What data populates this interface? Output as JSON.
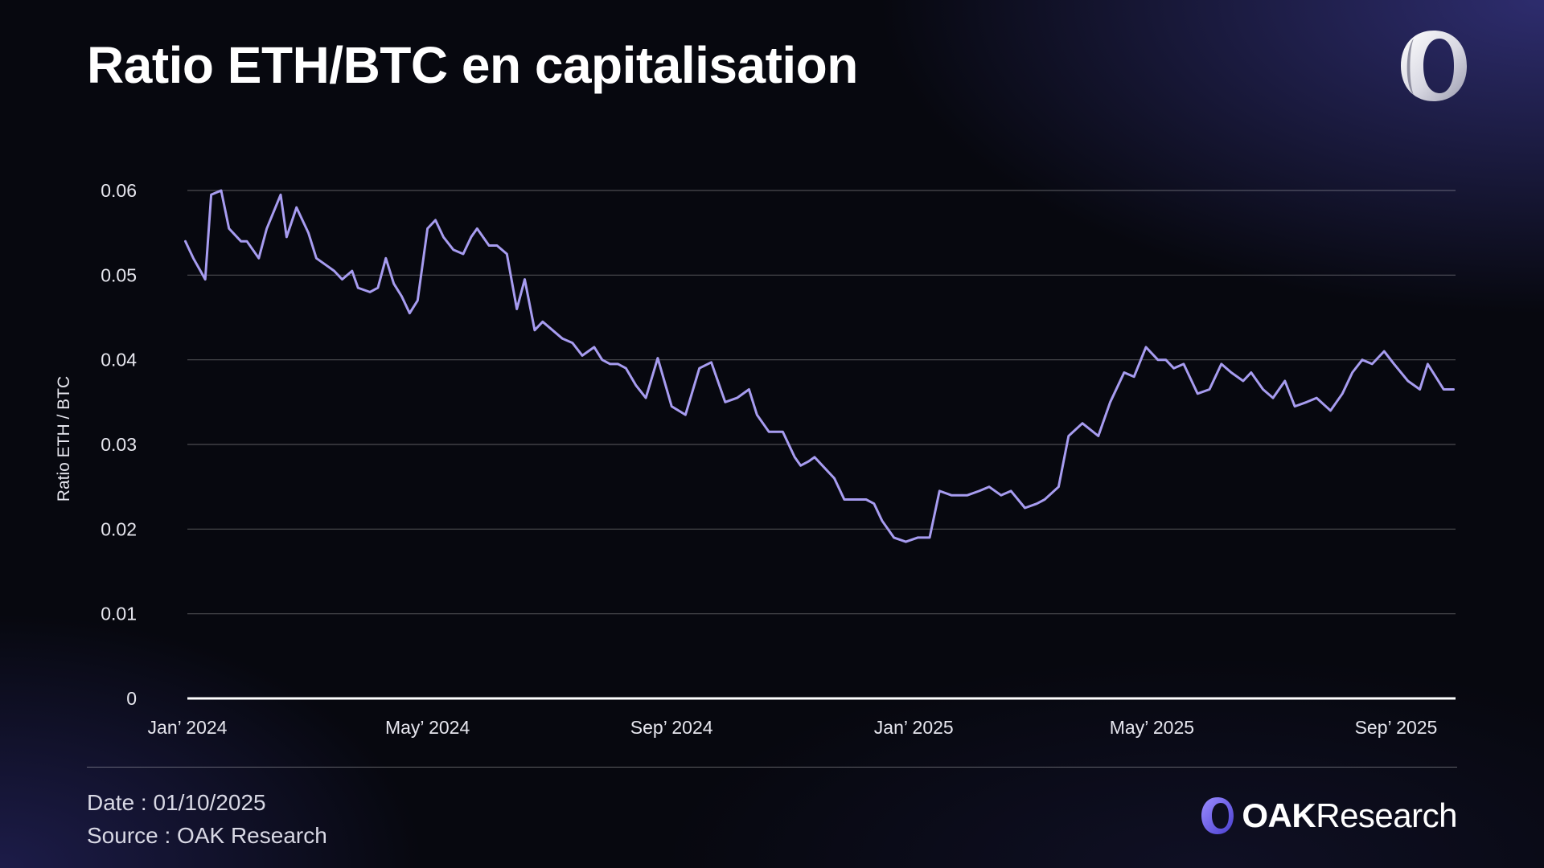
{
  "header": {
    "title": "Ratio ETH/BTC en capitalisation",
    "logo_icon": "oak-ring-logo-icon"
  },
  "chart_data": {
    "type": "line",
    "title": "Ratio ETH/BTC en capitalisation",
    "xlabel": "",
    "ylabel": "Ratio ETH / BTC",
    "ylim": [
      0,
      0.06
    ],
    "yticks": [
      0,
      0.01,
      0.02,
      0.03,
      0.04,
      0.05,
      0.06
    ],
    "ytick_labels": [
      "0",
      "0.01",
      "0.02",
      "0.03",
      "0.04",
      "0.05",
      "0.06"
    ],
    "xlim": [
      "2024-01-01",
      "2025-10-01"
    ],
    "xticks": [
      "2024-01-01",
      "2024-05-01",
      "2024-09-01",
      "2025-01-01",
      "2025-05-01",
      "2025-09-01"
    ],
    "xtick_labels": [
      "Jan’ 2024",
      "May’ 2024",
      "Sep’ 2024",
      "Jan’ 2025",
      "May’ 2025",
      "Sep’ 2025"
    ],
    "grid": "horizontal",
    "line_color": "#a79cf0",
    "series": [
      {
        "x": [
          "2023-12-31",
          "2024-01-04",
          "2024-01-10",
          "2024-01-13",
          "2024-01-18",
          "2024-01-22",
          "2024-01-28",
          "2024-01-31",
          "2024-02-06",
          "2024-02-10",
          "2024-02-17",
          "2024-02-20",
          "2024-02-25",
          "2024-03-02",
          "2024-03-06",
          "2024-03-12",
          "2024-03-15",
          "2024-03-19",
          "2024-03-24",
          "2024-03-27",
          "2024-04-02",
          "2024-04-06",
          "2024-04-10",
          "2024-04-14",
          "2024-04-18",
          "2024-04-22",
          "2024-04-26",
          "2024-05-01",
          "2024-05-05",
          "2024-05-09",
          "2024-05-14",
          "2024-05-19",
          "2024-05-23",
          "2024-05-26",
          "2024-06-01",
          "2024-06-05",
          "2024-06-10",
          "2024-06-15",
          "2024-06-19",
          "2024-06-24",
          "2024-06-28",
          "2024-07-03",
          "2024-07-08",
          "2024-07-13",
          "2024-07-18",
          "2024-07-24",
          "2024-07-28",
          "2024-08-01",
          "2024-08-05",
          "2024-08-09",
          "2024-08-14",
          "2024-08-19",
          "2024-08-25",
          "2024-09-01",
          "2024-09-08",
          "2024-09-15",
          "2024-09-21",
          "2024-09-28",
          "2024-10-04",
          "2024-10-10",
          "2024-10-14",
          "2024-10-20",
          "2024-10-27",
          "2024-11-02",
          "2024-11-05",
          "2024-11-09",
          "2024-11-12",
          "2024-11-16",
          "2024-11-22",
          "2024-11-27",
          "2024-12-02",
          "2024-12-08",
          "2024-12-12",
          "2024-12-16",
          "2024-12-22",
          "2024-12-28",
          "2025-01-03",
          "2025-01-09",
          "2025-01-14",
          "2025-01-20",
          "2025-01-28",
          "2025-02-03",
          "2025-02-08",
          "2025-02-14",
          "2025-02-19",
          "2025-02-26",
          "2025-03-04",
          "2025-03-08",
          "2025-03-15",
          "2025-03-20",
          "2025-03-27",
          "2025-04-04",
          "2025-04-10",
          "2025-04-17",
          "2025-04-22",
          "2025-04-28",
          "2025-05-04",
          "2025-05-08",
          "2025-05-12",
          "2025-05-17",
          "2025-05-24",
          "2025-05-30",
          "2025-06-05",
          "2025-06-10",
          "2025-06-16",
          "2025-06-20",
          "2025-06-26",
          "2025-07-01",
          "2025-07-07",
          "2025-07-12",
          "2025-07-18",
          "2025-07-23",
          "2025-07-30",
          "2025-08-05",
          "2025-08-10",
          "2025-08-15",
          "2025-08-20",
          "2025-08-26",
          "2025-08-31",
          "2025-09-07",
          "2025-09-13",
          "2025-09-17",
          "2025-09-21",
          "2025-09-25",
          "2025-09-30"
        ],
        "y": [
          0.054,
          0.052,
          0.0495,
          0.0595,
          0.06,
          0.0555,
          0.054,
          0.054,
          0.052,
          0.0555,
          0.0595,
          0.0545,
          0.058,
          0.055,
          0.052,
          0.051,
          0.0505,
          0.0495,
          0.0505,
          0.0485,
          0.048,
          0.0485,
          0.052,
          0.049,
          0.0475,
          0.0455,
          0.047,
          0.0555,
          0.0565,
          0.0545,
          0.053,
          0.0525,
          0.0545,
          0.0555,
          0.0535,
          0.0535,
          0.0525,
          0.046,
          0.0495,
          0.0435,
          0.0445,
          0.0435,
          0.0425,
          0.042,
          0.0405,
          0.0415,
          0.04,
          0.0395,
          0.0395,
          0.039,
          0.037,
          0.0355,
          0.0402,
          0.0345,
          0.0335,
          0.039,
          0.0397,
          0.035,
          0.0355,
          0.0365,
          0.0335,
          0.0315,
          0.0315,
          0.0285,
          0.0275,
          0.028,
          0.0285,
          0.0275,
          0.026,
          0.0235,
          0.0235,
          0.0235,
          0.023,
          0.021,
          0.019,
          0.0185,
          0.019,
          0.019,
          0.0245,
          0.024,
          0.024,
          0.0245,
          0.025,
          0.024,
          0.0245,
          0.0225,
          0.023,
          0.0235,
          0.025,
          0.031,
          0.0325,
          0.031,
          0.035,
          0.0385,
          0.038,
          0.0415,
          0.04,
          0.04,
          0.039,
          0.0395,
          0.036,
          0.0365,
          0.0395,
          0.0385,
          0.0375,
          0.0385,
          0.0365,
          0.0355,
          0.0375,
          0.0345,
          0.035,
          0.0355,
          0.034,
          0.036,
          0.0385,
          0.04,
          0.0395,
          0.041,
          0.0395,
          0.0375,
          0.0365,
          0.0395,
          0.038,
          0.0365,
          0.0365
        ]
      }
    ]
  },
  "footer": {
    "date_line": "Date : 01/10/2025",
    "source_line": "Source : OAK Research",
    "brand_icon": "oak-ring-logo-icon",
    "brand_name_bold": "OAK",
    "brand_name_light": "Research"
  }
}
